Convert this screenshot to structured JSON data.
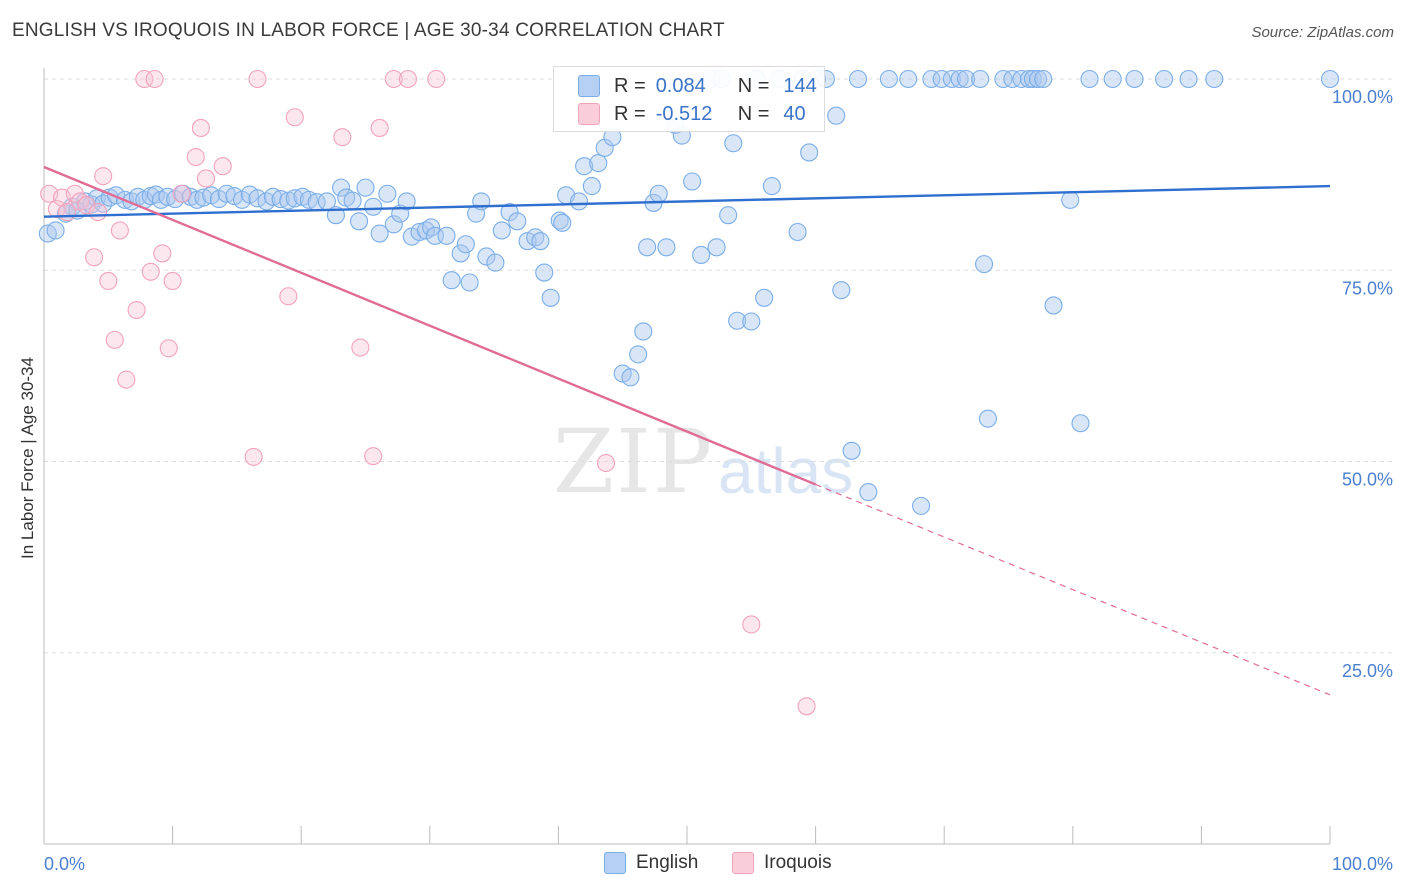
{
  "title": "ENGLISH VS IROQUOIS IN LABOR FORCE | AGE 30-34 CORRELATION CHART",
  "source": "Source: ZipAtlas.com",
  "watermark": {
    "zip": "ZIP",
    "atlas": "atlas"
  },
  "legend": {
    "r_label": "R =",
    "n_label": "N =",
    "english": {
      "r": "0.084",
      "n": "144"
    },
    "iroquois": {
      "r": "-0.512",
      "n": "40"
    }
  },
  "colors": {
    "english": "#7aaee8",
    "english_line": "#2f6fcf",
    "iroquois": "#f2a3bb",
    "iroquois_line": "#e06c95"
  },
  "chart_data": {
    "type": "scatter",
    "title": "ENGLISH VS IROQUOIS IN LABOR FORCE | AGE 30-34 CORRELATION CHART",
    "xlabel": "",
    "ylabel": "In Labor Force | Age 30-34",
    "xlim": [
      0,
      100
    ],
    "ylim": [
      0,
      100
    ],
    "x_tick_labels": [
      "0.0%",
      "100.0%"
    ],
    "y_ticks": [
      25,
      50,
      75,
      100
    ],
    "y_tick_labels": [
      "25.0%",
      "50.0%",
      "75.0%",
      "100.0%"
    ],
    "legend": [
      "English",
      "Iroquois"
    ],
    "series": [
      {
        "name": "English",
        "trend": {
          "x": [
            0,
            100
          ],
          "y": [
            82.0,
            86.0
          ],
          "style": "solid"
        },
        "points": [
          [
            0.3,
            79.8
          ],
          [
            0.9,
            80.2
          ],
          [
            1.7,
            82.4
          ],
          [
            2.2,
            83.3
          ],
          [
            2.6,
            82.8
          ],
          [
            3.2,
            84.0
          ],
          [
            3.7,
            83.6
          ],
          [
            4.1,
            84.4
          ],
          [
            4.6,
            83.7
          ],
          [
            5.1,
            84.5
          ],
          [
            5.6,
            84.8
          ],
          [
            6.3,
            84.2
          ],
          [
            6.8,
            84.0
          ],
          [
            7.3,
            84.6
          ],
          [
            7.8,
            84.2
          ],
          [
            8.3,
            84.7
          ],
          [
            8.7,
            84.9
          ],
          [
            9.1,
            84.2
          ],
          [
            9.6,
            84.6
          ],
          [
            10.2,
            84.3
          ],
          [
            10.8,
            85.0
          ],
          [
            11.4,
            84.6
          ],
          [
            11.9,
            84.2
          ],
          [
            12.4,
            84.5
          ],
          [
            13.0,
            84.8
          ],
          [
            13.6,
            84.3
          ],
          [
            14.2,
            85.0
          ],
          [
            14.8,
            84.7
          ],
          [
            15.4,
            84.2
          ],
          [
            16.0,
            84.9
          ],
          [
            16.6,
            84.4
          ],
          [
            17.3,
            84.0
          ],
          [
            17.8,
            84.6
          ],
          [
            18.4,
            84.3
          ],
          [
            19.0,
            84.1
          ],
          [
            19.5,
            84.4
          ],
          [
            20.1,
            84.6
          ],
          [
            20.6,
            84.2
          ],
          [
            21.2,
            83.9
          ],
          [
            22.0,
            84.0
          ],
          [
            22.7,
            82.2
          ],
          [
            23.1,
            85.8
          ],
          [
            23.5,
            84.5
          ],
          [
            24.0,
            84.1
          ],
          [
            24.5,
            81.4
          ],
          [
            25.0,
            85.8
          ],
          [
            25.6,
            83.3
          ],
          [
            26.1,
            79.8
          ],
          [
            26.7,
            85.0
          ],
          [
            27.2,
            81.0
          ],
          [
            27.7,
            82.4
          ],
          [
            28.2,
            84.0
          ],
          [
            28.6,
            79.4
          ],
          [
            29.2,
            80.0
          ],
          [
            29.7,
            80.2
          ],
          [
            30.1,
            80.6
          ],
          [
            30.4,
            79.5
          ],
          [
            31.3,
            79.5
          ],
          [
            31.7,
            73.7
          ],
          [
            32.4,
            77.2
          ],
          [
            32.8,
            78.4
          ],
          [
            33.1,
            73.4
          ],
          [
            33.6,
            82.4
          ],
          [
            34.0,
            84.0
          ],
          [
            34.4,
            76.8
          ],
          [
            35.1,
            76.0
          ],
          [
            35.6,
            80.2
          ],
          [
            36.2,
            82.6
          ],
          [
            36.8,
            81.4
          ],
          [
            37.6,
            78.8
          ],
          [
            38.2,
            79.3
          ],
          [
            38.6,
            78.8
          ],
          [
            38.9,
            74.7
          ],
          [
            39.4,
            71.4
          ],
          [
            40.1,
            81.5
          ],
          [
            40.3,
            81.2
          ],
          [
            40.6,
            84.8
          ],
          [
            41.6,
            84.0
          ],
          [
            42.0,
            88.6
          ],
          [
            42.6,
            86.0
          ],
          [
            43.1,
            89.0
          ],
          [
            43.6,
            91.0
          ],
          [
            44.2,
            92.4
          ],
          [
            45.0,
            61.5
          ],
          [
            45.6,
            61.0
          ],
          [
            46.2,
            64.0
          ],
          [
            46.6,
            67.0
          ],
          [
            46.9,
            78.0
          ],
          [
            47.4,
            83.8
          ],
          [
            47.8,
            85.0
          ],
          [
            48.4,
            78.0
          ],
          [
            49.1,
            94.0
          ],
          [
            49.6,
            92.6
          ],
          [
            50.4,
            86.6
          ],
          [
            51.1,
            77.0
          ],
          [
            51.9,
            100.0
          ],
          [
            52.3,
            78.0
          ],
          [
            52.7,
            100.0
          ],
          [
            53.2,
            82.2
          ],
          [
            53.6,
            91.6
          ],
          [
            53.9,
            68.4
          ],
          [
            55.0,
            68.3
          ],
          [
            55.4,
            100.0
          ],
          [
            56.0,
            71.4
          ],
          [
            56.6,
            86.0
          ],
          [
            57.2,
            100.0
          ],
          [
            58.6,
            80.0
          ],
          [
            59.0,
            100.0
          ],
          [
            59.5,
            90.4
          ],
          [
            60.1,
            100.0
          ],
          [
            60.8,
            100.0
          ],
          [
            61.6,
            95.2
          ],
          [
            62.0,
            72.4
          ],
          [
            62.8,
            51.4
          ],
          [
            63.3,
            100.0
          ],
          [
            64.1,
            46.0
          ],
          [
            65.7,
            100.0
          ],
          [
            67.2,
            100.0
          ],
          [
            68.2,
            44.2
          ],
          [
            69.0,
            100.0
          ],
          [
            69.8,
            100.0
          ],
          [
            70.6,
            100.0
          ],
          [
            71.2,
            100.0
          ],
          [
            71.7,
            100.0
          ],
          [
            72.8,
            100.0
          ],
          [
            73.1,
            75.8
          ],
          [
            73.4,
            55.6
          ],
          [
            74.6,
            100.0
          ],
          [
            75.3,
            100.0
          ],
          [
            76.0,
            100.0
          ],
          [
            76.6,
            100.0
          ],
          [
            76.9,
            100.0
          ],
          [
            77.3,
            100.0
          ],
          [
            77.7,
            100.0
          ],
          [
            78.5,
            70.4
          ],
          [
            79.8,
            84.2
          ],
          [
            80.6,
            55.0
          ],
          [
            81.3,
            100.0
          ],
          [
            83.1,
            100.0
          ],
          [
            84.8,
            100.0
          ],
          [
            87.1,
            100.0
          ],
          [
            89.0,
            100.0
          ],
          [
            91.0,
            100.0
          ],
          [
            100.0,
            100.0
          ]
        ]
      },
      {
        "name": "Iroquois",
        "trend": {
          "x": [
            0,
            60,
            100
          ],
          "y": [
            88.5,
            47.0,
            19.5
          ],
          "style": "solid-then-dashed"
        },
        "points": [
          [
            0.4,
            85.0
          ],
          [
            1.0,
            83.0
          ],
          [
            1.4,
            84.5
          ],
          [
            1.8,
            82.6
          ],
          [
            2.4,
            85.0
          ],
          [
            2.8,
            84.0
          ],
          [
            3.3,
            83.5
          ],
          [
            3.9,
            76.7
          ],
          [
            4.2,
            82.6
          ],
          [
            4.6,
            87.3
          ],
          [
            5.0,
            73.6
          ],
          [
            5.5,
            65.9
          ],
          [
            5.9,
            80.2
          ],
          [
            6.4,
            60.7
          ],
          [
            7.2,
            69.8
          ],
          [
            7.8,
            100.0
          ],
          [
            8.3,
            74.8
          ],
          [
            8.6,
            100.0
          ],
          [
            9.2,
            77.2
          ],
          [
            9.7,
            64.8
          ],
          [
            10.0,
            73.6
          ],
          [
            10.7,
            85.0
          ],
          [
            11.8,
            89.8
          ],
          [
            12.2,
            93.6
          ],
          [
            12.6,
            87.0
          ],
          [
            13.9,
            88.6
          ],
          [
            16.3,
            50.6
          ],
          [
            16.6,
            100.0
          ],
          [
            19.0,
            71.6
          ],
          [
            19.5,
            95.0
          ],
          [
            23.2,
            92.4
          ],
          [
            24.6,
            64.9
          ],
          [
            25.6,
            50.7
          ],
          [
            26.1,
            93.6
          ],
          [
            27.2,
            100.0
          ],
          [
            28.3,
            100.0
          ],
          [
            30.5,
            100.0
          ],
          [
            43.7,
            49.8
          ],
          [
            55.0,
            28.7
          ],
          [
            59.3,
            18.0
          ]
        ]
      }
    ]
  },
  "axis": {
    "x_left": "0.0%",
    "x_right": "100.0%"
  }
}
